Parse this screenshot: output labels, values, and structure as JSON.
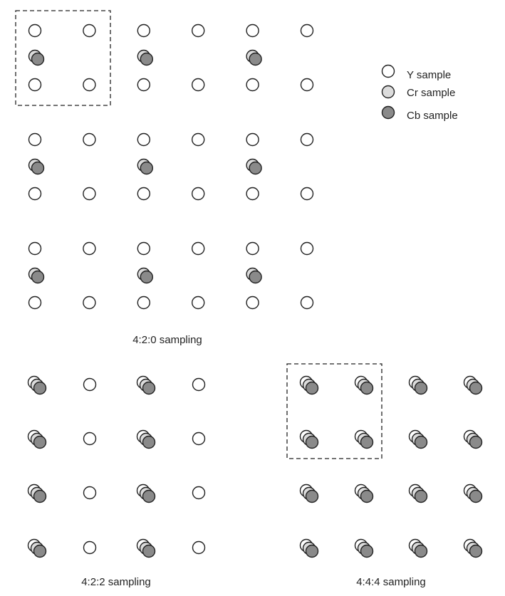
{
  "legend": {
    "items": [
      {
        "label": "Y sample",
        "kind": "y"
      },
      {
        "label": "Cr sample",
        "kind": "cr"
      },
      {
        "label": "Cb sample",
        "kind": "cb"
      }
    ]
  },
  "panels": [
    {
      "id": "420",
      "caption": "4:2:0 sampling",
      "columns": 6,
      "rows": 3,
      "y_rows_per_group": 2,
      "chroma": "between-row-pairs",
      "chroma_every": 2
    },
    {
      "id": "422",
      "caption": "4:2:2 sampling",
      "columns": 4,
      "rows": 4,
      "chroma": "cosited",
      "chroma_every": 2
    },
    {
      "id": "444",
      "caption": "4:4:4 sampling",
      "columns": 4,
      "rows": 4,
      "chroma": "cosited",
      "chroma_every": 1
    }
  ],
  "colors": {
    "y_fill": "#ffffff",
    "cr_fill": "#dcdcdc",
    "cb_fill": "#8a8a8a",
    "stroke": "#222222"
  }
}
